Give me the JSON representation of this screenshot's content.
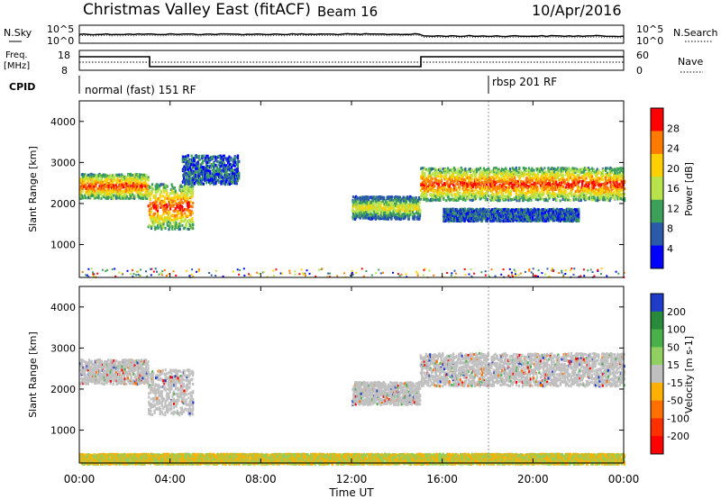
{
  "header": {
    "station": "Christmas Valley East (fitACF)",
    "beam": "Beam 16",
    "date": "10/Apr/2016"
  },
  "noise_panel": {
    "left_label": "N.Sky",
    "right_label": "N.Search",
    "ticks": [
      "10^5",
      "10^0"
    ]
  },
  "freq_panel": {
    "left_label": [
      "Freq.",
      "[MHz]"
    ],
    "left_ticks": [
      "18",
      "8"
    ],
    "right_label": "Nave",
    "right_ticks": [
      "60",
      "0"
    ]
  },
  "cpid_panel": {
    "label": "CPID",
    "segments": [
      "normal (fast) 151 RF",
      "rbsp 201 RF"
    ]
  },
  "time_axis": {
    "label": "Time UT",
    "ticks": [
      "00:00",
      "04:00",
      "08:00",
      "12:00",
      "16:00",
      "20:00",
      "00:00"
    ]
  },
  "chart_data": [
    {
      "type": "heatmap",
      "name": "Power",
      "ylabel": "Slant Range [km]",
      "y_ticks": [
        "1000",
        "2000",
        "3000",
        "4000"
      ],
      "ylim": [
        200,
        4500
      ],
      "xlim_hours": [
        0,
        24
      ],
      "colorbar": {
        "label": "Power [dB]",
        "ticks": [
          "28",
          "24",
          "20",
          "16",
          "12",
          "8",
          "4"
        ],
        "colors": [
          "#ff0000",
          "#ff7a00",
          "#ffd000",
          "#b9e34a",
          "#3ca05a",
          "#2a5aa8",
          "#0000ff"
        ]
      },
      "features": [
        {
          "from_h": 0,
          "to_h": 3,
          "range_km": [
            2150,
            2750
          ],
          "level": "strong"
        },
        {
          "from_h": 3,
          "to_h": 5,
          "range_km": [
            1400,
            2500
          ],
          "level": "strong"
        },
        {
          "from_h": 4.5,
          "to_h": 7,
          "range_km": [
            2500,
            3200
          ],
          "level": "weak"
        },
        {
          "from_h": 12,
          "to_h": 15,
          "range_km": [
            1650,
            2200
          ],
          "level": "medium"
        },
        {
          "from_h": 15,
          "to_h": 24,
          "range_km": [
            2100,
            2900
          ],
          "level": "strong"
        },
        {
          "from_h": 16,
          "to_h": 22,
          "range_km": [
            1600,
            1900
          ],
          "level": "weak"
        }
      ]
    },
    {
      "type": "heatmap",
      "name": "Velocity",
      "ylabel": "Slant Range [km]",
      "y_ticks": [
        "1000",
        "2000",
        "3000",
        "4000"
      ],
      "ylim": [
        200,
        4500
      ],
      "xlim_hours": [
        0,
        24
      ],
      "colorbar": {
        "label": "Velocity [m s-1]",
        "ticks": [
          "200",
          "100",
          "50",
          "15",
          "-15",
          "-50",
          "-100",
          "-200"
        ],
        "colors": [
          "#1e3cc8",
          "#2a8a3c",
          "#4ab04a",
          "#8fd060",
          "#c0c0c0",
          "#ffb000",
          "#ff7000",
          "#ff3000",
          "#ff0000"
        ]
      },
      "features": [
        {
          "from_h": 0,
          "to_h": 3,
          "range_km": [
            2150,
            2750
          ],
          "velocity": "near zero"
        },
        {
          "from_h": 3,
          "to_h": 5,
          "range_km": [
            1400,
            2500
          ],
          "velocity": "near zero"
        },
        {
          "from_h": 12,
          "to_h": 15,
          "range_km": [
            1650,
            2200
          ],
          "velocity": "near zero"
        },
        {
          "from_h": 15,
          "to_h": 24,
          "range_km": [
            2100,
            2900
          ],
          "velocity": "near zero"
        },
        {
          "from_h": 0,
          "to_h": 24,
          "range_km": [
            200,
            450
          ],
          "velocity": "ground scatter band"
        }
      ]
    }
  ]
}
